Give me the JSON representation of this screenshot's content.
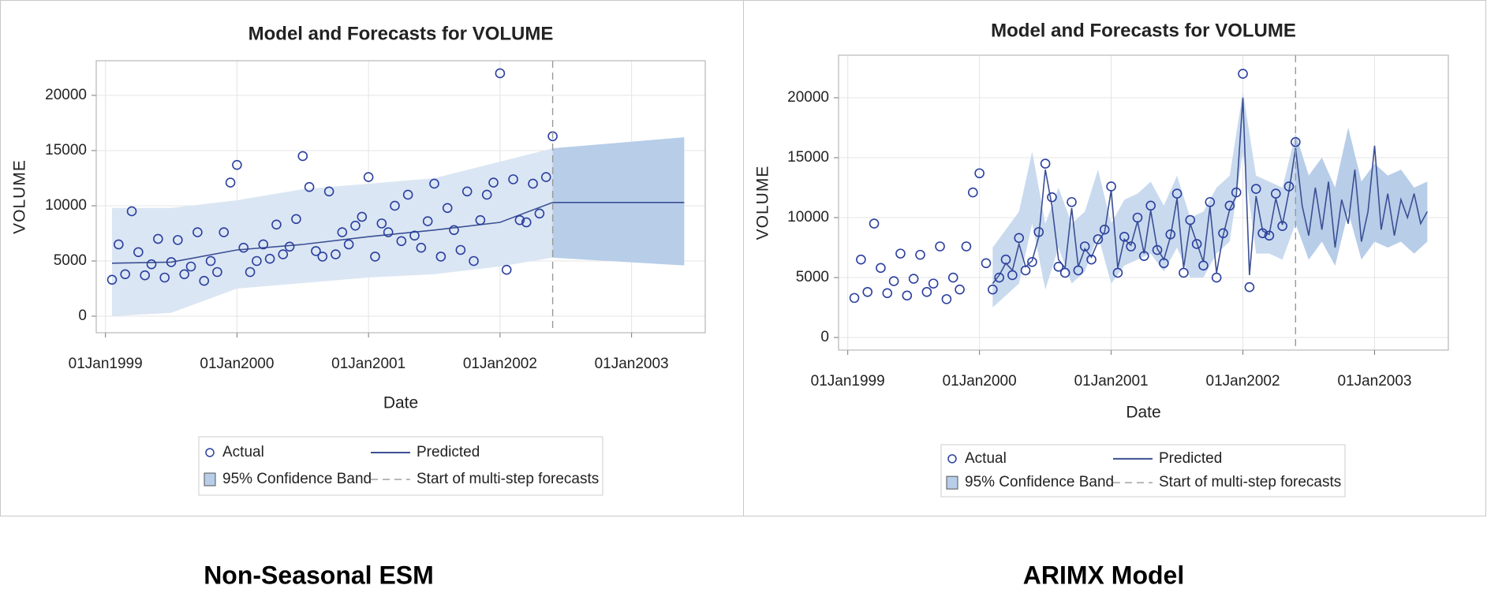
{
  "chart_data": [
    {
      "type": "line",
      "title": "Model and Forecasts for VOLUME",
      "xlabel": "Date",
      "ylabel": "VOLUME",
      "xlim": [
        1998.93,
        2003.56
      ],
      "ylim": [
        -1500,
        23140
      ],
      "xticks": [
        {
          "value": 1999,
          "label": "01Jan1999"
        },
        {
          "value": 2000,
          "label": "01Jan2000"
        },
        {
          "value": 2001,
          "label": "01Jan2001"
        },
        {
          "value": 2002,
          "label": "01Jan2002"
        },
        {
          "value": 2003,
          "label": "01Jan2003"
        }
      ],
      "yticks": [
        0,
        5000,
        10000,
        15000,
        20000
      ],
      "grid": true,
      "forecast_start": 2002.4,
      "forecast_label": "Start of multi-step forecasts",
      "forecast_color": "#b7cde8",
      "series": [
        {
          "name": "Actual",
          "color": "#2a3f9e",
          "marker": "circle",
          "x": [
            1999.05,
            1999.1,
            1999.15,
            1999.2,
            1999.25,
            1999.3,
            1999.35,
            1999.4,
            1999.45,
            1999.5,
            1999.55,
            1999.6,
            1999.65,
            1999.7,
            1999.75,
            1999.8,
            1999.85,
            1999.9,
            1999.95,
            2000.0,
            2000.05,
            2000.1,
            2000.15,
            2000.2,
            2000.25,
            2000.3,
            2000.35,
            2000.4,
            2000.45,
            2000.5,
            2000.55,
            2000.6,
            2000.65,
            2000.7,
            2000.75,
            2000.8,
            2000.85,
            2000.9,
            2000.95,
            2001.0,
            2001.05,
            2001.1,
            2001.15,
            2001.2,
            2001.25,
            2001.3,
            2001.35,
            2001.4,
            2001.45,
            2001.5,
            2001.55,
            2001.6,
            2001.65,
            2001.7,
            2001.75,
            2001.8,
            2001.85,
            2001.9,
            2001.95,
            2002.0,
            2002.05,
            2002.1,
            2002.15,
            2002.2,
            2002.25,
            2002.3,
            2002.35,
            2002.4
          ],
          "values": [
            3300,
            6500,
            3800,
            9500,
            5800,
            3700,
            4700,
            7000,
            3500,
            4900,
            6900,
            3800,
            4500,
            7600,
            3200,
            5000,
            4000,
            7600,
            12100,
            13700,
            6200,
            4000,
            5000,
            6500,
            5200,
            8300,
            5600,
            6300,
            8800,
            14500,
            11700,
            5900,
            5400,
            11300,
            5600,
            7600,
            6500,
            8200,
            9000,
            12600,
            5400,
            8400,
            7600,
            10000,
            6800,
            11000,
            7300,
            6200,
            8600,
            12000,
            5400,
            9800,
            7800,
            6000,
            11300,
            5000,
            8700,
            11000,
            12100,
            22000,
            4200,
            12400,
            8700,
            8500,
            12000,
            9300,
            12600,
            16300
          ]
        },
        {
          "name": "Predicted",
          "color": "#3b4f94",
          "marker": "line",
          "x": [
            1999.05,
            1999.5,
            2000.0,
            2000.5,
            2001.0,
            2001.5,
            2002.0,
            2002.4,
            2003.4
          ],
          "values": [
            4800,
            4900,
            6000,
            6500,
            7200,
            7800,
            8500,
            10300,
            10300
          ]
        },
        {
          "name": "95% Confidence Band",
          "color": "#dbe6f4",
          "marker": "band",
          "x": [
            1999.05,
            1999.5,
            2000.0,
            2000.5,
            2001.0,
            2001.5,
            2002.0,
            2002.4,
            2003.4
          ],
          "upper": [
            9800,
            9800,
            10500,
            11500,
            12000,
            12500,
            14000,
            15200,
            16200
          ],
          "lower": [
            0,
            300,
            2500,
            3000,
            3500,
            3800,
            4500,
            5300,
            4600
          ]
        }
      ]
    },
    {
      "type": "line",
      "title": "Model and Forecasts for VOLUME",
      "xlabel": "Date",
      "ylabel": "VOLUME",
      "xlim": [
        1998.93,
        2003.56
      ],
      "ylim": [
        -1050,
        23550
      ],
      "xticks": [
        {
          "value": 1999,
          "label": "01Jan1999"
        },
        {
          "value": 2000,
          "label": "01Jan2000"
        },
        {
          "value": 2001,
          "label": "01Jan2001"
        },
        {
          "value": 2002,
          "label": "01Jan2002"
        },
        {
          "value": 2003,
          "label": "01Jan2003"
        }
      ],
      "yticks": [
        0,
        5000,
        10000,
        15000,
        20000
      ],
      "grid": true,
      "forecast_start": 2002.4,
      "forecast_label": "Start of multi-step forecasts",
      "forecast_color": "#b7cde8",
      "series": [
        {
          "name": "Actual",
          "color": "#2a3f9e",
          "marker": "circle",
          "x": [
            1999.05,
            1999.1,
            1999.15,
            1999.2,
            1999.25,
            1999.3,
            1999.35,
            1999.4,
            1999.45,
            1999.5,
            1999.55,
            1999.6,
            1999.65,
            1999.7,
            1999.75,
            1999.8,
            1999.85,
            1999.9,
            1999.95,
            2000.0,
            2000.05,
            2000.1,
            2000.15,
            2000.2,
            2000.25,
            2000.3,
            2000.35,
            2000.4,
            2000.45,
            2000.5,
            2000.55,
            2000.6,
            2000.65,
            2000.7,
            2000.75,
            2000.8,
            2000.85,
            2000.9,
            2000.95,
            2001.0,
            2001.05,
            2001.1,
            2001.15,
            2001.2,
            2001.25,
            2001.3,
            2001.35,
            2001.4,
            2001.45,
            2001.5,
            2001.55,
            2001.6,
            2001.65,
            2001.7,
            2001.75,
            2001.8,
            2001.85,
            2001.9,
            2001.95,
            2002.0,
            2002.05,
            2002.1,
            2002.15,
            2002.2,
            2002.25,
            2002.3,
            2002.35,
            2002.4
          ],
          "values": [
            3300,
            6500,
            3800,
            9500,
            5800,
            3700,
            4700,
            7000,
            3500,
            4900,
            6900,
            3800,
            4500,
            7600,
            3200,
            5000,
            4000,
            7600,
            12100,
            13700,
            6200,
            4000,
            5000,
            6500,
            5200,
            8300,
            5600,
            6300,
            8800,
            14500,
            11700,
            5900,
            5400,
            11300,
            5600,
            7600,
            6500,
            8200,
            9000,
            12600,
            5400,
            8400,
            7600,
            10000,
            6800,
            11000,
            7300,
            6200,
            8600,
            12000,
            5400,
            9800,
            7800,
            6000,
            11300,
            5000,
            8700,
            11000,
            12100,
            22000,
            4200,
            12400,
            8700,
            8500,
            12000,
            9300,
            12600,
            16300
          ]
        },
        {
          "name": "Predicted",
          "color": "#3b4f94",
          "marker": "line",
          "x": [
            2000.1,
            2000.15,
            2000.2,
            2000.25,
            2000.3,
            2000.35,
            2000.4,
            2000.45,
            2000.5,
            2000.55,
            2000.6,
            2000.65,
            2000.7,
            2000.75,
            2000.8,
            2000.85,
            2000.9,
            2000.95,
            2001.0,
            2001.05,
            2001.1,
            2001.15,
            2001.2,
            2001.25,
            2001.3,
            2001.35,
            2001.4,
            2001.45,
            2001.5,
            2001.55,
            2001.6,
            2001.65,
            2001.7,
            2001.75,
            2001.8,
            2001.85,
            2001.9,
            2001.95,
            2002.0,
            2002.05,
            2002.1,
            2002.15,
            2002.2,
            2002.25,
            2002.3,
            2002.35,
            2002.4,
            2002.45,
            2002.5,
            2002.55,
            2002.6,
            2002.65,
            2002.7,
            2002.75,
            2002.8,
            2002.85,
            2002.9,
            2002.95,
            2003.0,
            2003.05,
            2003.1,
            2003.15,
            2003.2,
            2003.25,
            2003.3,
            2003.35,
            2003.4
          ],
          "values": [
            4500,
            5200,
            6200,
            5600,
            7800,
            5900,
            6400,
            8400,
            14000,
            11000,
            6500,
            5800,
            10800,
            5900,
            7400,
            6700,
            8000,
            8800,
            12300,
            5800,
            8200,
            7700,
            9700,
            7000,
            10600,
            7400,
            6500,
            8400,
            11600,
            5800,
            9500,
            7900,
            6300,
            10900,
            5400,
            8500,
            10700,
            11800,
            20000,
            5200,
            11800,
            8900,
            8600,
            11600,
            9400,
            12200,
            15800,
            11000,
            8500,
            12500,
            9000,
            13000,
            7500,
            11500,
            9500,
            14000,
            8000,
            10500,
            16000,
            9000,
            12000,
            8500,
            11500,
            10000,
            12000,
            9500,
            10500
          ]
        },
        {
          "name": "95% Confidence Band",
          "color": "#c9daef",
          "marker": "band",
          "x": [
            2000.1,
            2000.2,
            2000.3,
            2000.4,
            2000.5,
            2000.6,
            2000.7,
            2000.8,
            2000.9,
            2001.0,
            2001.1,
            2001.2,
            2001.3,
            2001.4,
            2001.5,
            2001.6,
            2001.7,
            2001.8,
            2001.9,
            2002.0,
            2002.1,
            2002.2,
            2002.3,
            2002.4,
            2002.5,
            2002.6,
            2002.7,
            2002.8,
            2002.9,
            2003.0,
            2003.1,
            2003.2,
            2003.3,
            2003.4
          ],
          "upper": [
            7500,
            9000,
            10500,
            15500,
            9500,
            12500,
            9500,
            10500,
            14000,
            9500,
            11500,
            12000,
            13000,
            11000,
            13500,
            10000,
            10500,
            12500,
            13500,
            20500,
            13500,
            13000,
            12500,
            17000,
            13500,
            15000,
            12500,
            17500,
            13000,
            14500,
            13500,
            14000,
            12500,
            13000
          ],
          "lower": [
            2500,
            3500,
            4500,
            9500,
            4000,
            7500,
            4500,
            5500,
            8500,
            4500,
            6000,
            6500,
            7000,
            5500,
            7500,
            5000,
            5000,
            7000,
            8000,
            15500,
            7000,
            7000,
            6500,
            9500,
            6500,
            8000,
            6000,
            10500,
            6500,
            8000,
            7500,
            8000,
            7000,
            8000
          ]
        }
      ]
    }
  ],
  "captions": [
    "Non-Seasonal ESM",
    "ARIMX Model"
  ]
}
